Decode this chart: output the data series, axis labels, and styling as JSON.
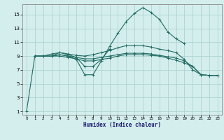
{
  "xlabel": "Humidex (Indice chaleur)",
  "ylabel": "",
  "background_color": "#d4eeed",
  "grid_color": "#aed4d0",
  "line_color": "#216b62",
  "xlim": [
    -0.5,
    23.5
  ],
  "ylim": [
    0.5,
    16.5
  ],
  "yticks": [
    1,
    3,
    5,
    7,
    9,
    11,
    13,
    15
  ],
  "xticks": [
    0,
    1,
    2,
    3,
    4,
    5,
    6,
    7,
    8,
    9,
    10,
    11,
    12,
    13,
    14,
    15,
    16,
    17,
    18,
    19,
    20,
    21,
    22,
    23
  ],
  "lines": [
    {
      "x": [
        0,
        1,
        2,
        3,
        4,
        5,
        6,
        7,
        8,
        9,
        10,
        11,
        12,
        13,
        14,
        15,
        16,
        17,
        18,
        19
      ],
      "y": [
        1,
        9.0,
        9.0,
        9.0,
        9.2,
        9.0,
        8.5,
        6.3,
        6.3,
        8.3,
        10.4,
        12.3,
        14.0,
        15.2,
        16.0,
        15.3,
        14.3,
        12.5,
        11.5,
        10.8
      ]
    },
    {
      "x": [
        3,
        4,
        5,
        6,
        7,
        8,
        9,
        10
      ],
      "y": [
        9.0,
        9.5,
        9.2,
        8.8,
        7.5,
        7.5,
        8.5,
        10.0
      ]
    },
    {
      "x": [
        1,
        2,
        3,
        4,
        5,
        6,
        7,
        8,
        9,
        10,
        11,
        12,
        13,
        14,
        15,
        16,
        17,
        18,
        19,
        20,
        21,
        22,
        23
      ],
      "y": [
        9.0,
        9.0,
        9.3,
        9.5,
        9.3,
        9.1,
        9.0,
        9.2,
        9.5,
        9.8,
        10.2,
        10.5,
        10.5,
        10.5,
        10.3,
        10.0,
        9.8,
        9.5,
        8.5,
        7.0,
        6.3,
        6.2,
        6.2
      ]
    },
    {
      "x": [
        1,
        2,
        3,
        4,
        5,
        6,
        7,
        8,
        9,
        10,
        11,
        12,
        13,
        14,
        15,
        16,
        17,
        18,
        19,
        20,
        21,
        22,
        23
      ],
      "y": [
        9.0,
        9.0,
        9.0,
        9.2,
        9.0,
        8.8,
        8.6,
        8.6,
        8.8,
        9.0,
        9.2,
        9.4,
        9.4,
        9.4,
        9.3,
        9.1,
        8.9,
        8.7,
        8.3,
        7.5,
        6.3,
        6.2,
        6.2
      ]
    },
    {
      "x": [
        1,
        2,
        3,
        4,
        5,
        6,
        7,
        8,
        9,
        10,
        11,
        12,
        13,
        14,
        15,
        16,
        17,
        18,
        19,
        20,
        21,
        22,
        23
      ],
      "y": [
        9.0,
        9.0,
        9.0,
        9.0,
        8.8,
        8.6,
        8.3,
        8.3,
        8.5,
        8.7,
        9.0,
        9.2,
        9.2,
        9.2,
        9.1,
        9.0,
        8.7,
        8.4,
        8.0,
        7.5,
        6.3,
        6.2,
        6.2
      ]
    }
  ]
}
